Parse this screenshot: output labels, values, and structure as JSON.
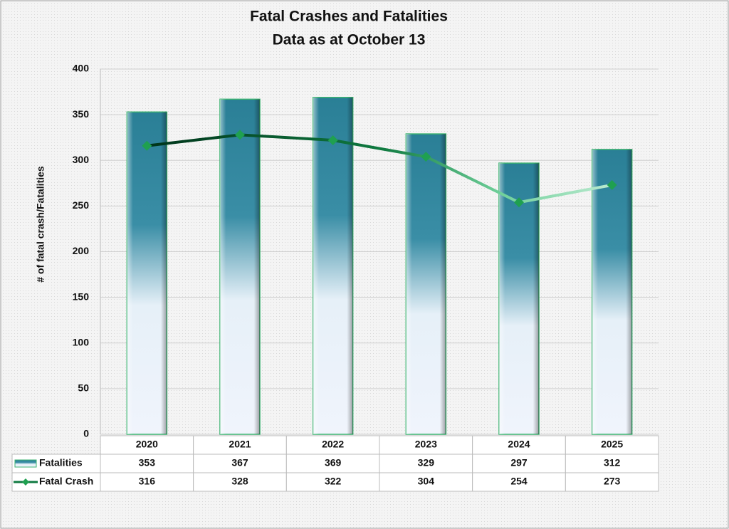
{
  "chart_data": {
    "type": "bar",
    "title": "Fatal Crashes and Fatalities",
    "subtitle": "Data as at October 13",
    "y_label": "# of fatal crash/Fatalities",
    "categories": [
      "2020",
      "2021",
      "2022",
      "2023",
      "2024",
      "2025"
    ],
    "series": [
      {
        "name": "Fatalities",
        "type": "bar",
        "color": "#2e8aa0",
        "values": [
          353,
          367,
          369,
          329,
          297,
          312
        ]
      },
      {
        "name": "Fatal Crash",
        "type": "line",
        "color": "#1fa050",
        "values": [
          316,
          328,
          322,
          304,
          254,
          273
        ]
      }
    ],
    "ylim": [
      0,
      400
    ],
    "yticks": [
      0,
      50,
      100,
      150,
      200,
      250,
      300,
      350,
      400
    ],
    "grid": true,
    "data_table": true
  }
}
